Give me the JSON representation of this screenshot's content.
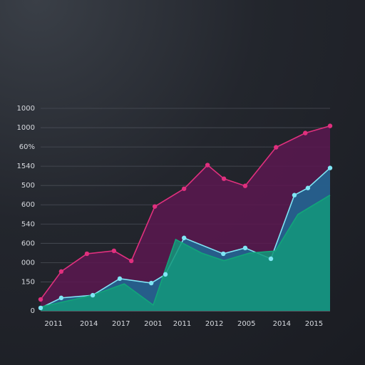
{
  "chart_data": {
    "type": "area",
    "xlim": [
      0,
      9
    ],
    "ylim": [
      0,
      10.5
    ],
    "xticks": [
      {
        "value": 0.4,
        "label": "2011"
      },
      {
        "value": 1.5,
        "label": "2014"
      },
      {
        "value": 2.5,
        "label": "2017"
      },
      {
        "value": 3.5,
        "label": "2001"
      },
      {
        "value": 4.4,
        "label": "2011"
      },
      {
        "value": 5.4,
        "label": "2012"
      },
      {
        "value": 6.4,
        "label": "2005"
      },
      {
        "value": 7.5,
        "label": "2014"
      },
      {
        "value": 8.5,
        "label": "2015"
      }
    ],
    "yticks": [
      0,
      {
        "value": 1.5,
        "label": "150"
      },
      {
        "value": 2.5,
        "label": "000"
      },
      {
        "value": 3.5,
        "label": "600"
      },
      {
        "value": 4.5,
        "label": "540"
      },
      {
        "value": 5.5,
        "label": "600"
      },
      {
        "value": 6.5,
        "label": "500"
      },
      {
        "value": 7.5,
        "label": "1540"
      },
      {
        "value": 8.5,
        "label": "60%"
      },
      {
        "value": 9.5,
        "label": "1000"
      },
      {
        "value": 10.5,
        "label": "1000"
      }
    ],
    "grid": true,
    "series": [
      {
        "color": "#e0307e",
        "fill": "#5a1850",
        "markers": true,
        "x": [
          0,
          0.64,
          1.44,
          2.28,
          2.82,
          3.55,
          4.46,
          5.19,
          5.7,
          6.36,
          7.32,
          8.23,
          9
        ],
        "values": [
          0.59,
          2.04,
          2.96,
          3.11,
          2.59,
          5.41,
          6.33,
          7.56,
          6.85,
          6.48,
          8.48,
          9.22,
          9.59
        ]
      },
      {
        "color": "#7fe6f5",
        "fill": "#1f6a95",
        "markers": true,
        "x": [
          0,
          0.64,
          1.62,
          2.46,
          3.44,
          3.88,
          4.46,
          5.68,
          6.36,
          7.16,
          7.89,
          8.31,
          9
        ],
        "values": [
          0.15,
          0.67,
          0.81,
          1.67,
          1.44,
          1.89,
          3.78,
          2.96,
          3.26,
          2.7,
          6.0,
          6.37,
          7.41
        ]
      },
      {
        "color": "#12a57a",
        "fill": "#13987a",
        "markers": false,
        "x": [
          0,
          1.6,
          2.6,
          3.5,
          4.2,
          5.0,
          5.7,
          6.5,
          7.3,
          8.0,
          9
        ],
        "values": [
          0.2,
          0.8,
          1.4,
          0.3,
          3.7,
          3.0,
          2.6,
          3.0,
          3.1,
          5.0,
          6.0
        ]
      }
    ]
  }
}
